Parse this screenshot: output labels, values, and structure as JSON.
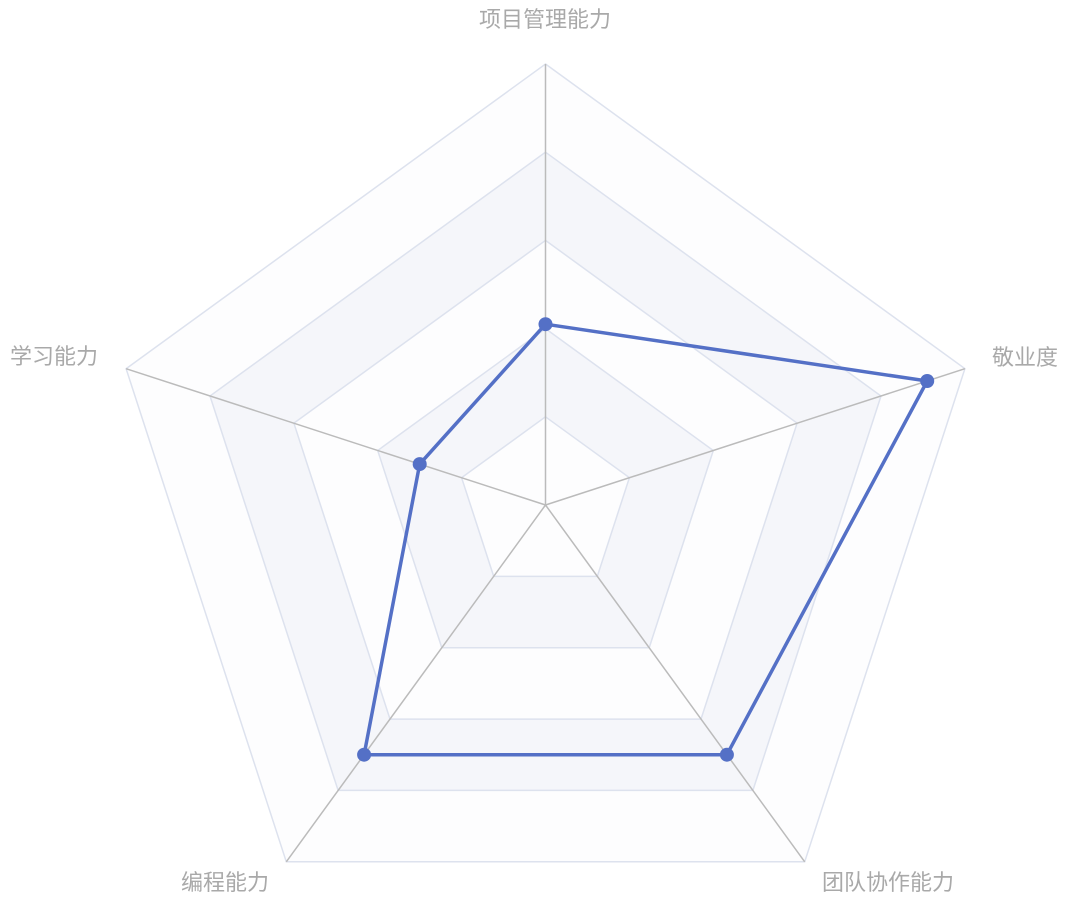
{
  "chart_data": {
    "type": "radar",
    "indicators": [
      {
        "name": "项目管理能力",
        "max": 100
      },
      {
        "name": "敬业度",
        "max": 100
      },
      {
        "name": "团队协作能力",
        "max": 100
      },
      {
        "name": "编程能力",
        "max": 100
      },
      {
        "name": "学习能力",
        "max": 100
      }
    ],
    "series": [
      {
        "values": [
          41,
          91,
          70,
          70,
          30
        ],
        "color": "#5470c6"
      }
    ],
    "split_levels": 5,
    "split_area_colors": [
      "#ffffff",
      "#f5f6fa"
    ],
    "split_line_color": "#dde2ee",
    "axis_line_color": "#bbbbbb",
    "label_color": "#a9a9a9",
    "grid": true,
    "legend": false
  }
}
